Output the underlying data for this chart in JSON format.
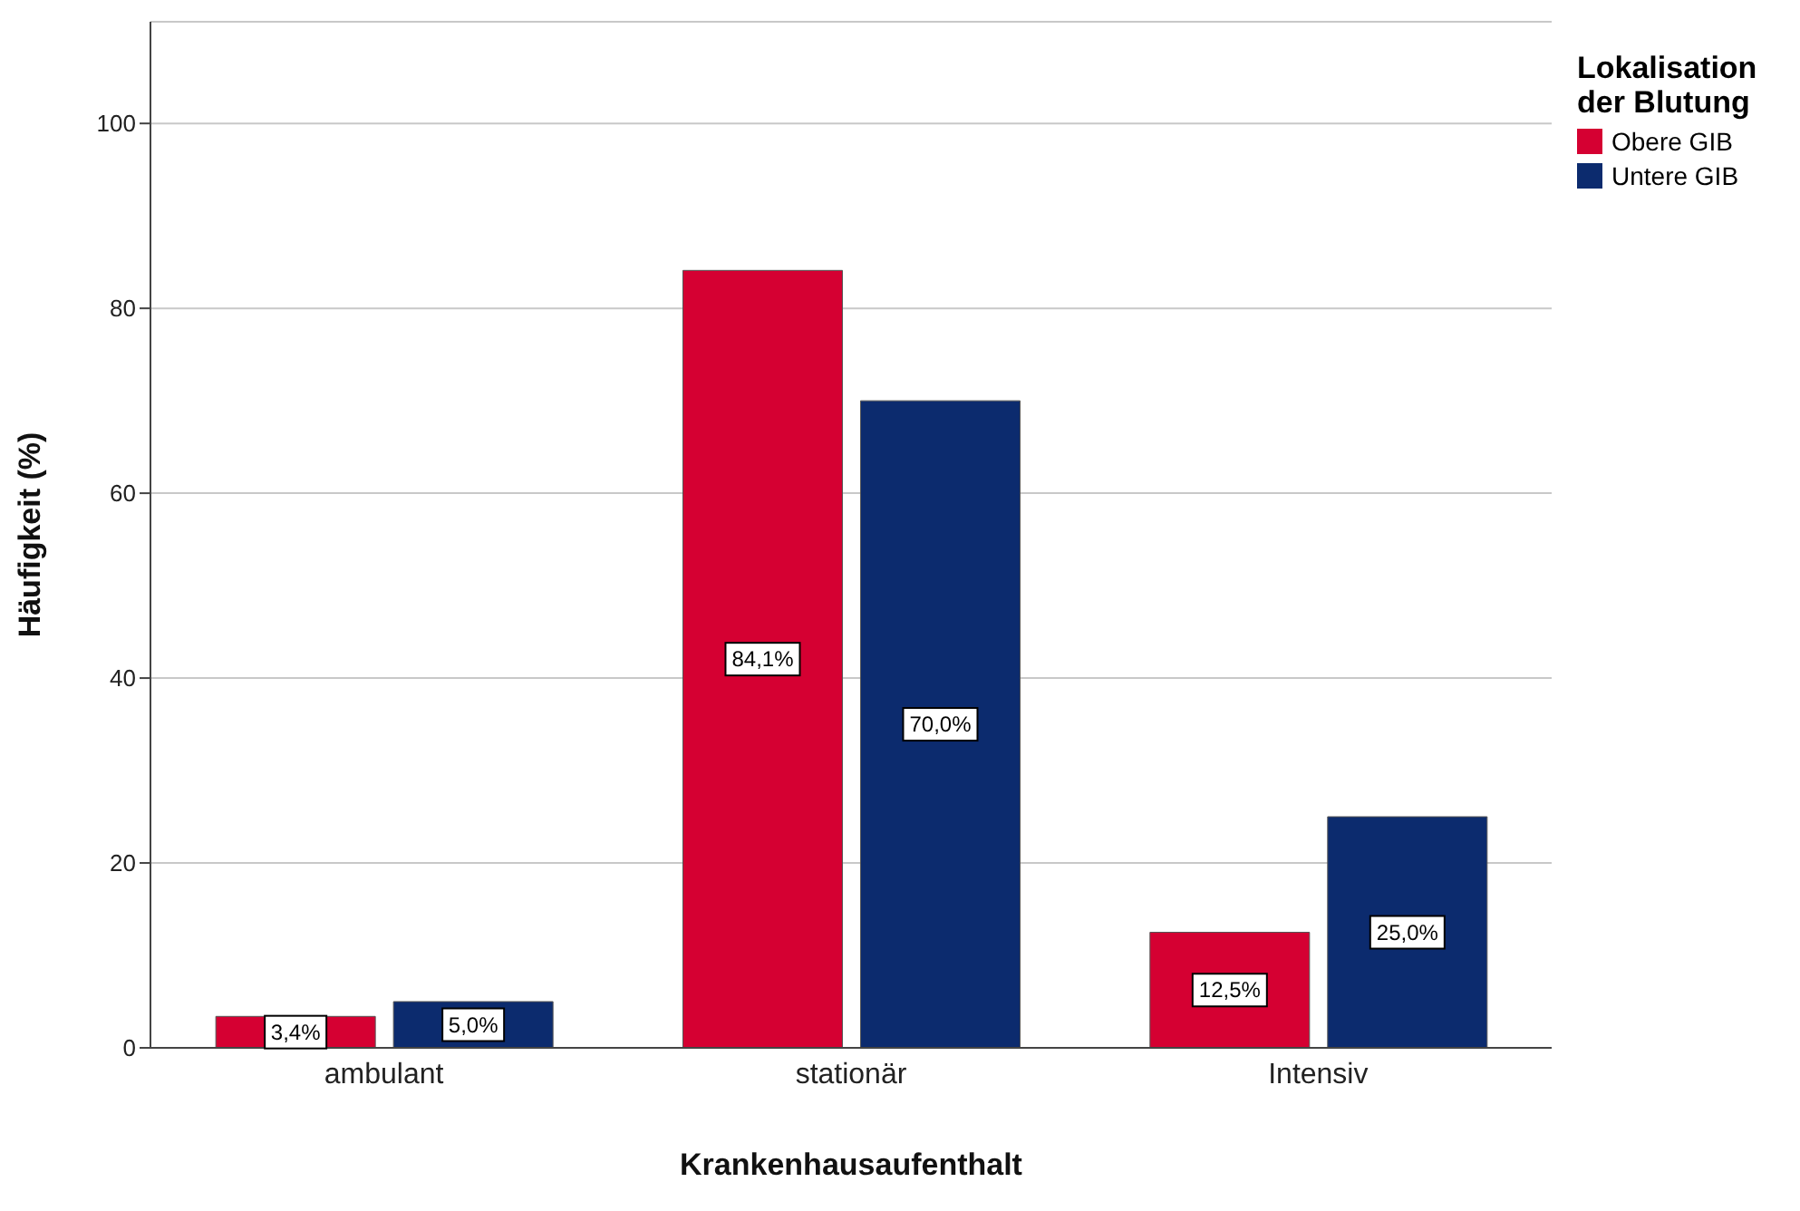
{
  "chart_data": {
    "type": "bar",
    "xlabel": "Krankenhausaufenthalt",
    "ylabel": "Häufigkeit (%)",
    "legend_title": "Lokalisation der Blutung",
    "categories": [
      "ambulant",
      "stationär",
      "Intensiv"
    ],
    "series": [
      {
        "name": "Obere GIB",
        "color": "#d50032",
        "values": [
          3.4,
          84.1,
          12.5
        ],
        "value_labels": [
          "3,4%",
          "84,1%",
          "12,5%"
        ]
      },
      {
        "name": "Untere GIB",
        "color": "#0c2b6e",
        "values": [
          5.0,
          70.0,
          25.0
        ],
        "value_labels": [
          "5,0%",
          "70,0%",
          "25,0%"
        ]
      }
    ],
    "ylim": [
      0,
      111
    ],
    "yticks": [
      0,
      20,
      40,
      60,
      80,
      100
    ],
    "grid": "y",
    "legend": "top right"
  }
}
